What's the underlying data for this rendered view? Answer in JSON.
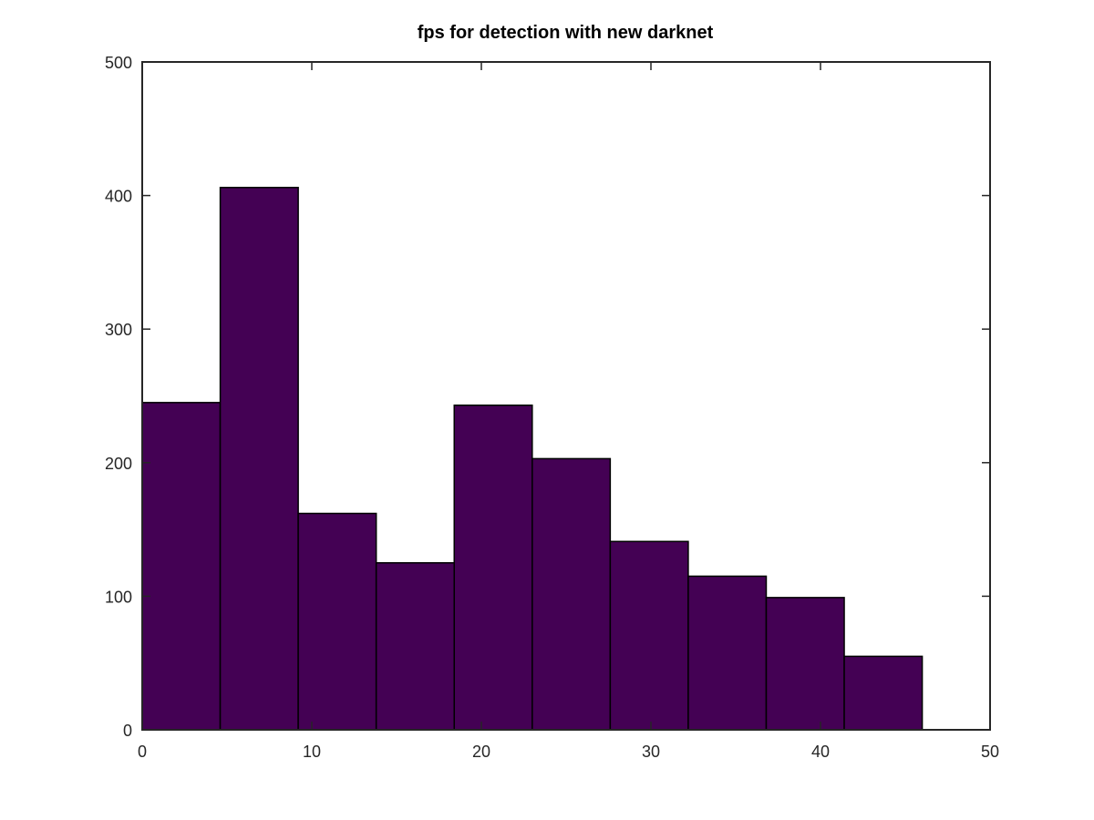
{
  "chart_data": {
    "type": "bar",
    "subtype": "histogram",
    "title": "fps for detection with new darknet",
    "xlabel": "",
    "ylabel": "",
    "xlim": [
      0,
      50
    ],
    "ylim": [
      0,
      500
    ],
    "x_ticks": [
      0,
      10,
      20,
      30,
      40,
      50
    ],
    "y_ticks": [
      0,
      100,
      200,
      300,
      400,
      500
    ],
    "grid": false,
    "legend": "none",
    "bins": [
      {
        "x0": 0.0,
        "x1": 4.6,
        "value": 245
      },
      {
        "x0": 4.6,
        "x1": 9.2,
        "value": 406
      },
      {
        "x0": 9.2,
        "x1": 13.8,
        "value": 162
      },
      {
        "x0": 13.8,
        "x1": 18.4,
        "value": 125
      },
      {
        "x0": 18.4,
        "x1": 23.0,
        "value": 243
      },
      {
        "x0": 23.0,
        "x1": 27.6,
        "value": 203
      },
      {
        "x0": 27.6,
        "x1": 32.2,
        "value": 141
      },
      {
        "x0": 32.2,
        "x1": 36.8,
        "value": 115
      },
      {
        "x0": 36.8,
        "x1": 41.4,
        "value": 99
      },
      {
        "x0": 41.4,
        "x1": 46.0,
        "value": 55
      }
    ],
    "colors": {
      "bar_fill": "#440154",
      "bar_edge": "#000000",
      "axis": "#262626"
    }
  }
}
